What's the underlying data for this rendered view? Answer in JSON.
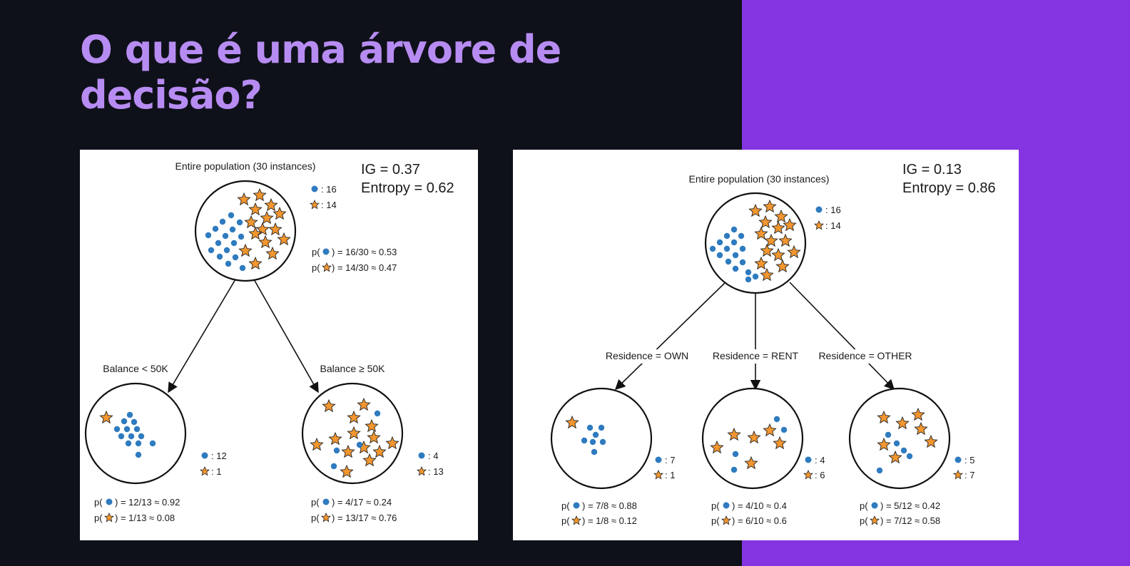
{
  "slide": {
    "title_line1": "O que é uma árvore de",
    "title_line2": "decisão?"
  },
  "colors": {
    "background": "#0f111a",
    "accent_band": "#8434e1",
    "title": "#b78cf2",
    "dot": "#2f7bbf",
    "star": "#f2962f"
  },
  "icons": {
    "dot": "blue-dot-icon",
    "star": "orange-star-icon"
  },
  "left_tree": {
    "ig": "IG = 0.37",
    "entropy": "Entropy = 0.62",
    "root": {
      "label": "Entire population (30 instances)",
      "count_dot": ": 16",
      "count_star": ": 14",
      "p_dot_pre": "p(",
      "p_dot": ") = 16/30 ≈ 0.53",
      "p_star_pre": "p(",
      "p_star": ") = 14/30 ≈ 0.47"
    },
    "children": [
      {
        "label": "Balance < 50K",
        "count_dot": ": 12",
        "count_star": ": 1",
        "p_dot_pre": "p(",
        "p_dot": ") = 12/13 ≈ 0.92",
        "p_star_pre": "p(",
        "p_star": ") = 1/13 ≈ 0.08"
      },
      {
        "label": "Balance ≥ 50K",
        "count_dot": ": 4",
        "count_star": ": 13",
        "p_dot_pre": "p(",
        "p_dot": ") = 4/17 ≈ 0.24",
        "p_star_pre": "p(",
        "p_star": ") = 13/17 ≈ 0.76"
      }
    ]
  },
  "right_tree": {
    "ig": "IG = 0.13",
    "entropy": "Entropy = 0.86",
    "root": {
      "label": "Entire population (30 instances)",
      "count_dot": ": 16",
      "count_star": ": 14"
    },
    "children": [
      {
        "label": "Residence = OWN",
        "count_dot": ": 7",
        "count_star": ": 1",
        "p_dot_pre": "p(",
        "p_dot": ") = 7/8 ≈ 0.88",
        "p_star_pre": "p(",
        "p_star": ") = 1/8 ≈ 0.12"
      },
      {
        "label": "Residence = RENT",
        "count_dot": ": 4",
        "count_star": ": 6",
        "p_dot_pre": "p(",
        "p_dot": ") = 4/10 ≈ 0.4",
        "p_star_pre": "p(",
        "p_star": ") = 6/10 ≈ 0.6"
      },
      {
        "label": "Residence = OTHER",
        "count_dot": ": 5",
        "count_star": ": 7",
        "p_dot_pre": "p(",
        "p_dot": ") = 5/12 ≈ 0.42",
        "p_star_pre": "p(",
        "p_star": ") = 7/12 ≈ 0.58"
      }
    ]
  }
}
